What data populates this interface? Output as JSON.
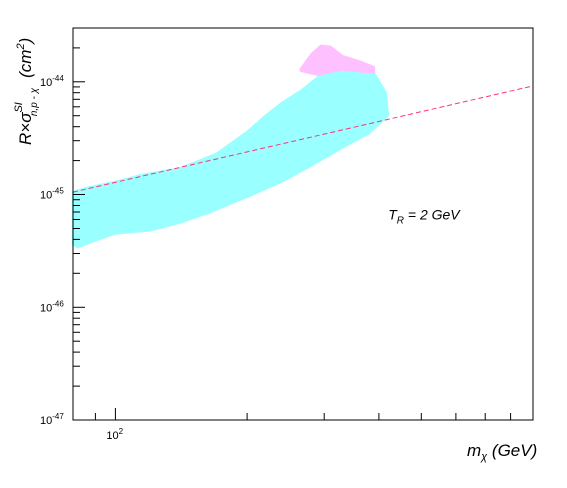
{
  "chart_data": {
    "type": "scatter",
    "xscale": "log",
    "yscale": "log",
    "xlim": [
      80,
      900
    ],
    "ylim": [
      1e-47,
      3e-44
    ],
    "grid": false,
    "xlabel": {
      "main": "m",
      "sub": "χ",
      "tail": " (GeV)"
    },
    "ylabel": {
      "pre": "R×σ",
      "sup": "SI",
      "sub": "n,p - χ",
      "tail": "(cm",
      "tailsup": "2",
      "close": ")"
    },
    "x_tick_labels": [
      {
        "value": 100,
        "base": "10",
        "exp": "2"
      }
    ],
    "y_tick_labels": [
      {
        "value": 1e-47,
        "base": "10",
        "exp": "-47"
      },
      {
        "value": 1e-46,
        "base": "10",
        "exp": "-46"
      },
      {
        "value": 1e-45,
        "base": "10",
        "exp": "-45"
      },
      {
        "value": 1e-44,
        "base": "10",
        "exp": "-44"
      }
    ],
    "annotation": {
      "pre": "T",
      "sub": "R",
      "post": " = 2 GeV",
      "x": 420,
      "y": 6e-46
    },
    "limit_line": {
      "style": "dashed",
      "color": "#ff3377",
      "points": [
        [
          80,
          1.05e-45
        ],
        [
          900,
          9.2e-45
        ]
      ]
    },
    "regions": [
      {
        "color": "#99ffff",
        "points": [
          [
            80,
            1.05e-45
          ],
          [
            86,
            1.15e-45
          ],
          [
            100,
            1.3e-45
          ],
          [
            115,
            1.5e-45
          ],
          [
            140,
            1.7e-45
          ],
          [
            170,
            2.3e-45
          ],
          [
            200,
            3.6e-45
          ],
          [
            220,
            5e-45
          ],
          [
            240,
            6.5e-45
          ],
          [
            265,
            8.3e-45
          ],
          [
            290,
            1.1e-44
          ],
          [
            330,
            1.3e-44
          ],
          [
            390,
            1.2e-44
          ],
          [
            415,
            8e-45
          ],
          [
            420,
            5e-45
          ],
          [
            380,
            3.5e-45
          ],
          [
            330,
            2.6e-45
          ],
          [
            280,
            1.8e-45
          ],
          [
            240,
            1.3e-45
          ],
          [
            200,
            9.5e-46
          ],
          [
            165,
            7e-46
          ],
          [
            140,
            5.6e-46
          ],
          [
            120,
            4.8e-46
          ],
          [
            100,
            4.5e-46
          ],
          [
            90,
            3.9e-46
          ],
          [
            82,
            3.4e-46
          ],
          [
            80,
            3.6e-46
          ]
        ]
      },
      {
        "color": "#ffc0ff",
        "points": [
          [
            265,
            1.3e-44
          ],
          [
            280,
            1.75e-44
          ],
          [
            295,
            2.1e-44
          ],
          [
            310,
            2.05e-44
          ],
          [
            330,
            1.7e-44
          ],
          [
            365,
            1.5e-44
          ],
          [
            390,
            1.35e-44
          ],
          [
            390,
            1.2e-44
          ],
          [
            330,
            1.28e-44
          ],
          [
            290,
            1.15e-44
          ],
          [
            265,
            1.25e-44
          ]
        ]
      }
    ]
  }
}
